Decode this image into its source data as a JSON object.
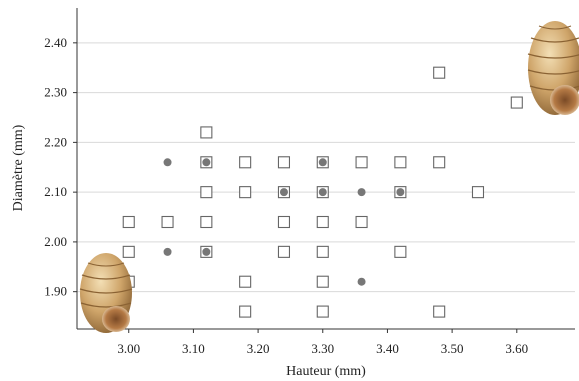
{
  "chart_data": {
    "type": "scatter",
    "title": "",
    "xlabel": "Hauteur (mm)",
    "ylabel": "Diamètre (mm)",
    "xlim": [
      2.92,
      3.69
    ],
    "ylim": [
      1.825,
      2.47
    ],
    "xticks": [
      3.0,
      3.1,
      3.2,
      3.3,
      3.4,
      3.5,
      3.6
    ],
    "xtick_labels": [
      "3.00",
      "3.10",
      "3.20",
      "3.30",
      "3.40",
      "3.50",
      "3.60"
    ],
    "yticks": [
      1.9,
      2.0,
      2.1,
      2.2,
      2.3,
      2.4
    ],
    "ytick_labels": [
      "1.90",
      "2.00",
      "2.10",
      "2.20",
      "2.30",
      "2.40"
    ],
    "grid": "horizontal",
    "colors": {
      "grid": "#d9d9d9",
      "axis": "#333333",
      "square": "#666666",
      "dot": "#777777"
    },
    "series": [
      {
        "marker": "open-square",
        "points": [
          [
            3.0,
            2.04
          ],
          [
            3.0,
            1.98
          ],
          [
            3.0,
            1.92
          ],
          [
            3.06,
            2.04
          ],
          [
            3.12,
            2.22
          ],
          [
            3.12,
            2.16
          ],
          [
            3.12,
            2.1
          ],
          [
            3.12,
            2.04
          ],
          [
            3.12,
            1.98
          ],
          [
            3.18,
            2.16
          ],
          [
            3.18,
            2.1
          ],
          [
            3.18,
            1.92
          ],
          [
            3.18,
            1.86
          ],
          [
            3.24,
            2.16
          ],
          [
            3.24,
            2.1
          ],
          [
            3.24,
            2.04
          ],
          [
            3.24,
            1.98
          ],
          [
            3.3,
            2.16
          ],
          [
            3.3,
            2.1
          ],
          [
            3.3,
            2.04
          ],
          [
            3.3,
            1.98
          ],
          [
            3.3,
            1.92
          ],
          [
            3.3,
            1.86
          ],
          [
            3.36,
            2.16
          ],
          [
            3.36,
            2.04
          ],
          [
            3.42,
            2.16
          ],
          [
            3.42,
            2.1
          ],
          [
            3.42,
            1.98
          ],
          [
            3.48,
            2.34
          ],
          [
            3.48,
            2.16
          ],
          [
            3.48,
            1.86
          ],
          [
            3.54,
            2.1
          ],
          [
            3.6,
            2.28
          ]
        ]
      },
      {
        "marker": "filled-circle",
        "points": [
          [
            3.06,
            2.16
          ],
          [
            3.06,
            1.98
          ],
          [
            3.12,
            2.16
          ],
          [
            3.12,
            1.98
          ],
          [
            3.24,
            2.1
          ],
          [
            3.3,
            2.16
          ],
          [
            3.3,
            2.1
          ],
          [
            3.36,
            2.1
          ],
          [
            3.36,
            1.92
          ],
          [
            3.42,
            2.1
          ]
        ]
      }
    ]
  },
  "images": {
    "shell_bottom_left": "small-snail-shell-photo",
    "shell_top_right": "large-snail-shell-photo"
  }
}
